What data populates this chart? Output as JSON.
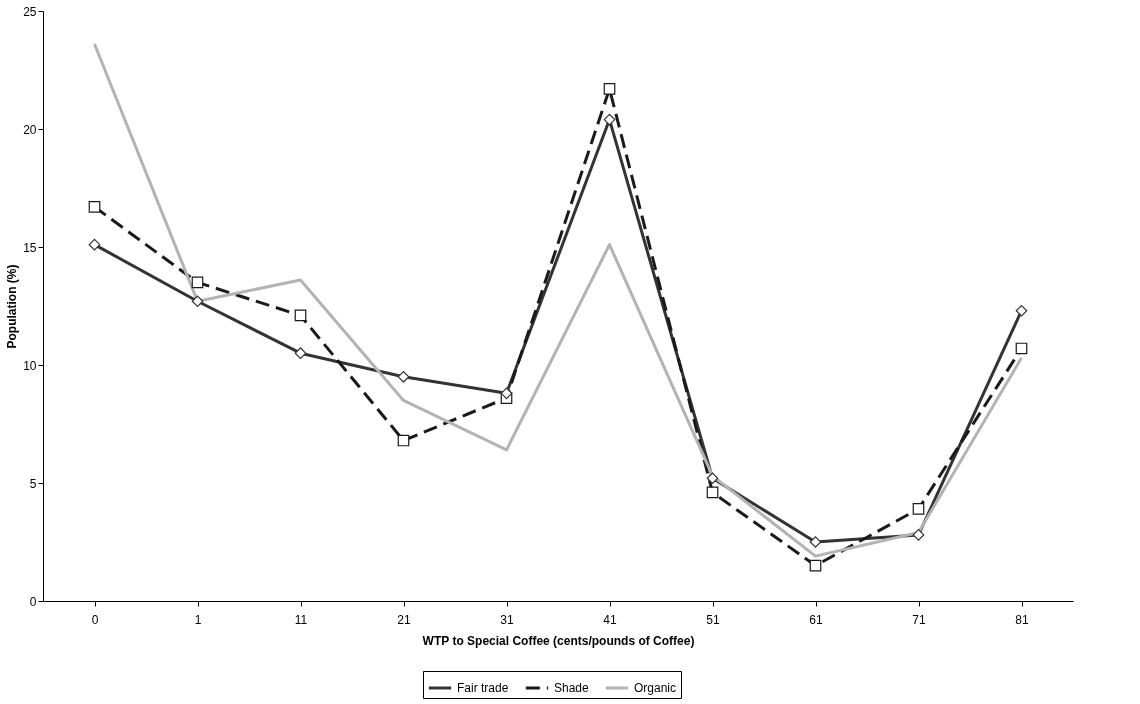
{
  "chart_data": {
    "type": "line",
    "xlabel": "WTP  to Special Coffee (cents/pounds of Coffee)",
    "ylabel": "Population (%)",
    "categories": [
      "0",
      "1",
      "11",
      "21",
      "31",
      "41",
      "51",
      "61",
      "71",
      "81"
    ],
    "ylim": [
      0,
      25
    ],
    "yticks": [
      0,
      5,
      10,
      15,
      20,
      25
    ],
    "grid": false,
    "legend": "bottom",
    "series": [
      {
        "name": "Fair trade",
        "color": "#333333",
        "marker": "diamond",
        "line_style": "solid",
        "values": [
          15.1,
          12.7,
          10.5,
          9.5,
          8.8,
          20.4,
          5.2,
          2.5,
          2.8,
          12.3
        ]
      },
      {
        "name": "Shade",
        "color": "#1a1a1a",
        "marker": "square",
        "line_style": "dashed",
        "values": [
          16.7,
          13.5,
          12.1,
          6.8,
          8.6,
          21.7,
          4.6,
          1.5,
          3.9,
          10.7
        ]
      },
      {
        "name": "Organic",
        "color": "#b3b3b3",
        "marker": "none",
        "line_style": "solid",
        "values": [
          23.6,
          12.7,
          13.6,
          8.5,
          6.4,
          15.1,
          5.3,
          1.9,
          2.9,
          10.3
        ]
      }
    ]
  }
}
